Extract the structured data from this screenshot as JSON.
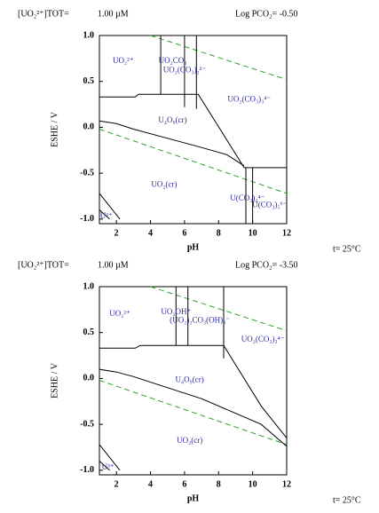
{
  "chart_data": [
    {
      "type": "line",
      "header_left": "[UO₂²⁺]TOT=",
      "header_mid": "1.00 µM",
      "header_right": "Log PCO₂= -0.50",
      "xlabel": "pH",
      "ylabel": "ESHE / V",
      "footnote": "t= 25°C",
      "xlim": [
        1,
        12
      ],
      "ylim": [
        -1.05,
        1.0
      ],
      "xticks": [
        2,
        4,
        6,
        8,
        10,
        12
      ],
      "yticks": [
        {
          "value": 1.0,
          "label": "1.0"
        },
        0.5,
        {
          "value": 0,
          "label": "0.0"
        },
        -0.5,
        {
          "value": -1.0,
          "label": "-1.0"
        }
      ],
      "lines": [
        {
          "color": "#2ca02c",
          "dash": true,
          "x": [
            4,
            12
          ],
          "y": [
            1.0,
            0.52
          ]
        },
        {
          "color": "#2ca02c",
          "dash": true,
          "x": [
            1,
            12
          ],
          "y": [
            -0.02,
            -0.72
          ]
        },
        {
          "color": "#000000",
          "dash": false,
          "x": [
            1,
            3.1,
            3.3,
            6.8,
            9.2,
            9.5,
            12
          ],
          "y": [
            0.33,
            0.33,
            0.36,
            0.36,
            -0.35,
            -0.44,
            -0.44
          ]
        },
        {
          "color": "#000000",
          "dash": false,
          "x": [
            4.6,
            4.6
          ],
          "y": [
            1.0,
            0.36
          ]
        },
        {
          "color": "#000000",
          "dash": false,
          "x": [
            6.0,
            6.0
          ],
          "y": [
            1.0,
            0.22
          ]
        },
        {
          "color": "#000000",
          "dash": false,
          "x": [
            6.7,
            6.7
          ],
          "y": [
            1.0,
            0.2
          ]
        },
        {
          "color": "#000000",
          "dash": false,
          "x": [
            1,
            2,
            3,
            5,
            7,
            8.5,
            9.5
          ],
          "y": [
            0.07,
            0.04,
            -0.02,
            -0.12,
            -0.22,
            -0.3,
            -0.42
          ]
        },
        {
          "color": "#000000",
          "dash": false,
          "x": [
            9.6,
            9.6
          ],
          "y": [
            -0.44,
            -1.05
          ]
        },
        {
          "color": "#000000",
          "dash": false,
          "x": [
            10.0,
            10.0
          ],
          "y": [
            -0.44,
            -1.05
          ]
        },
        {
          "color": "#000000",
          "dash": false,
          "x": [
            1,
            2.2
          ],
          "y": [
            -0.72,
            -1.0
          ]
        },
        {
          "color": "#000000",
          "dash": false,
          "x": [
            1,
            1.6
          ],
          "y": [
            -0.9,
            -1.0
          ]
        }
      ],
      "labels_color": "#2a2aa0",
      "labels": [
        {
          "text": "UO₂²⁺",
          "x": 2.4,
          "y": 0.72
        },
        {
          "text": "UO₂CO₃",
          "x": 5.3,
          "y": 0.72
        },
        {
          "text": "UO₂(CO₃)₂²⁻",
          "x": 6.0,
          "y": 0.62
        },
        {
          "text": "UO₂(CO₃)₃⁴⁻",
          "x": 9.8,
          "y": 0.3
        },
        {
          "text": "U₄O₉(cr)",
          "x": 5.3,
          "y": 0.07
        },
        {
          "text": "UO₂(cr)",
          "x": 4.8,
          "y": -0.63
        },
        {
          "text": "U(CO₃)₄⁴⁻",
          "x": 9.7,
          "y": -0.78
        },
        {
          "text": "U(CO₃)₅⁶⁻",
          "x": 11.0,
          "y": -0.85
        },
        {
          "text": "U³⁺",
          "x": 1.4,
          "y": -0.97
        }
      ]
    },
    {
      "type": "line",
      "header_left": "[UO₂²⁺]TOT=",
      "header_mid": "1.00 µM",
      "header_right": "Log PCO₂= -3.50",
      "xlabel": "pH",
      "ylabel": "ESHE / V",
      "footnote": "t= 25°C",
      "xlim": [
        1,
        12
      ],
      "ylim": [
        -1.05,
        1.0
      ],
      "xticks": [
        2,
        4,
        6,
        8,
        10,
        12
      ],
      "yticks": [
        {
          "value": 1.0,
          "label": "1.0"
        },
        0.5,
        {
          "value": 0,
          "label": "0.0"
        },
        -0.5,
        {
          "value": -1.0,
          "label": "-1.0"
        }
      ],
      "lines": [
        {
          "color": "#2ca02c",
          "dash": true,
          "x": [
            4,
            12
          ],
          "y": [
            1.0,
            0.52
          ]
        },
        {
          "color": "#2ca02c",
          "dash": true,
          "x": [
            1,
            12
          ],
          "y": [
            -0.02,
            -0.72
          ]
        },
        {
          "color": "#000000",
          "dash": false,
          "x": [
            1,
            3.1,
            3.4,
            8.3,
            10.5,
            12
          ],
          "y": [
            0.33,
            0.33,
            0.36,
            0.36,
            -0.3,
            -0.65
          ]
        },
        {
          "color": "#000000",
          "dash": false,
          "x": [
            5.5,
            5.5
          ],
          "y": [
            1.0,
            0.36
          ]
        },
        {
          "color": "#000000",
          "dash": false,
          "x": [
            6.2,
            6.2
          ],
          "y": [
            1.0,
            0.36
          ]
        },
        {
          "color": "#000000",
          "dash": false,
          "x": [
            8.3,
            8.3
          ],
          "y": [
            1.0,
            0.22
          ]
        },
        {
          "color": "#000000",
          "dash": false,
          "x": [
            1,
            2,
            3,
            5,
            7,
            9,
            10.5,
            12
          ],
          "y": [
            0.1,
            0.07,
            0.02,
            -0.1,
            -0.22,
            -0.38,
            -0.5,
            -0.74
          ]
        },
        {
          "color": "#000000",
          "dash": false,
          "x": [
            1,
            2.2
          ],
          "y": [
            -0.72,
            -1.0
          ]
        },
        {
          "color": "#000000",
          "dash": false,
          "x": [
            1,
            1.6
          ],
          "y": [
            -0.9,
            -1.0
          ]
        }
      ],
      "labels_color": "#2a2aa0",
      "labels": [
        {
          "text": "UO₂²⁺",
          "x": 2.2,
          "y": 0.7
        },
        {
          "text": "UO₂OH⁺",
          "x": 5.5,
          "y": 0.72
        },
        {
          "text": "(UO₂)₂CO₃(OH)₃⁻",
          "x": 6.9,
          "y": 0.63
        },
        {
          "text": "UO₂(CO₃)₃⁴⁻",
          "x": 10.6,
          "y": 0.42
        },
        {
          "text": "U₄O₉(cr)",
          "x": 6.3,
          "y": -0.02
        },
        {
          "text": "UO₂(cr)",
          "x": 6.3,
          "y": -0.68
        },
        {
          "text": "U³⁺",
          "x": 1.5,
          "y": -0.97
        }
      ]
    }
  ]
}
